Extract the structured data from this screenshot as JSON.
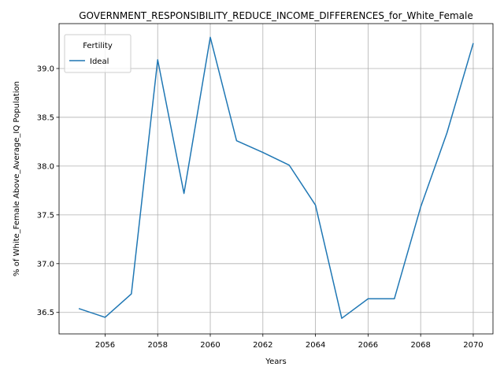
{
  "chart_data": {
    "type": "line",
    "title": "GOVERNMENT_RESPONSIBILITY_REDUCE_INCOME_DIFFERENCES_for_White_Female",
    "xlabel": "Years",
    "ylabel": "% of White_Female Above_Average_IQ Population",
    "xlim": [
      2054.25,
      2070.75
    ],
    "ylim": [
      36.28,
      39.46
    ],
    "xticks": [
      2056,
      2058,
      2060,
      2062,
      2064,
      2066,
      2068,
      2070
    ],
    "yticks": [
      36.5,
      37.0,
      37.5,
      38.0,
      38.5,
      39.0
    ],
    "grid": true,
    "legend": {
      "title": "Fertility",
      "placement": "top-left"
    },
    "series": [
      {
        "name": "Ideal",
        "color": "#1f77b4",
        "x": [
          2055,
          2056,
          2057,
          2058,
          2059,
          2060,
          2061,
          2062,
          2063,
          2064,
          2065,
          2066,
          2067,
          2068,
          2069,
          2070
        ],
        "y": [
          36.54,
          36.45,
          36.69,
          39.09,
          37.72,
          39.32,
          38.26,
          38.14,
          38.01,
          37.6,
          36.44,
          36.64,
          36.64,
          37.58,
          38.34,
          39.26
        ]
      }
    ]
  }
}
